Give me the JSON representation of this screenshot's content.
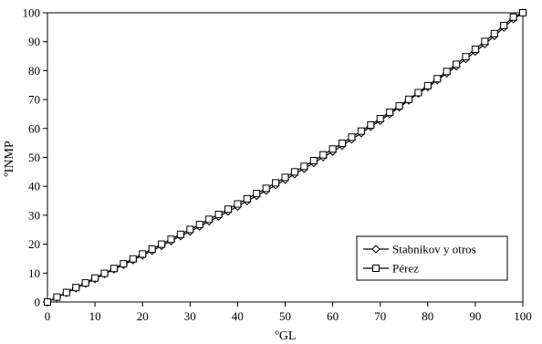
{
  "chart_data": {
    "type": "line",
    "title": "",
    "xlabel": "ºGL",
    "ylabel": "ºINMP",
    "xlim": [
      0,
      100
    ],
    "ylim": [
      0,
      100
    ],
    "xticks": [
      "0",
      "10",
      "20",
      "30",
      "40",
      "50",
      "60",
      "70",
      "80",
      "90",
      "100"
    ],
    "yticks": [
      "0",
      "10",
      "20",
      "30",
      "40",
      "50",
      "60",
      "70",
      "80",
      "90",
      "100"
    ],
    "grid": false,
    "legend_position": "bottom-right",
    "x": [
      0,
      2,
      4,
      6,
      8,
      10,
      12,
      14,
      16,
      18,
      20,
      22,
      24,
      26,
      28,
      30,
      32,
      34,
      36,
      38,
      40,
      42,
      44,
      46,
      48,
      50,
      52,
      54,
      56,
      58,
      60,
      62,
      64,
      66,
      68,
      70,
      72,
      74,
      76,
      78,
      80,
      82,
      84,
      86,
      88,
      90,
      92,
      94,
      96,
      98,
      100
    ],
    "series": [
      {
        "name": "Stabnikov y otros",
        "marker": "diamond",
        "values": [
          0,
          1.6,
          3.2,
          4.8,
          6.4,
          8.0,
          9.7,
          11.3,
          12.9,
          14.5,
          16.1,
          17.7,
          19.4,
          21.1,
          22.8,
          24.4,
          26.1,
          27.9,
          29.6,
          31.3,
          33.0,
          34.9,
          36.7,
          38.5,
          40.4,
          42.3,
          44.2,
          46.1,
          48.1,
          50.1,
          52.0,
          54.1,
          56.2,
          58.4,
          60.6,
          62.7,
          65.0,
          67.3,
          69.7,
          72.1,
          74.3,
          76.7,
          79.1,
          81.5,
          84.0,
          86.6,
          89.2,
          92.0,
          94.9,
          97.8,
          100
        ]
      },
      {
        "name": "Pérez",
        "marker": "square",
        "values": [
          0,
          1.7,
          3.3,
          5.0,
          6.6,
          8.3,
          9.9,
          11.6,
          13.2,
          14.9,
          16.6,
          18.3,
          20.0,
          21.7,
          23.4,
          25.1,
          26.8,
          28.6,
          30.3,
          32.1,
          33.9,
          35.7,
          37.5,
          39.3,
          41.2,
          43.1,
          45.0,
          46.9,
          48.9,
          50.9,
          52.9,
          54.9,
          57.0,
          59.1,
          61.2,
          63.4,
          65.6,
          67.8,
          70.1,
          72.4,
          74.8,
          77.2,
          79.7,
          82.2,
          84.8,
          87.4,
          90.1,
          92.8,
          95.6,
          98.5,
          100
        ]
      }
    ]
  },
  "colors": {
    "line": "#000000",
    "marker_fill": "#ffffff",
    "background": "#ffffff"
  }
}
